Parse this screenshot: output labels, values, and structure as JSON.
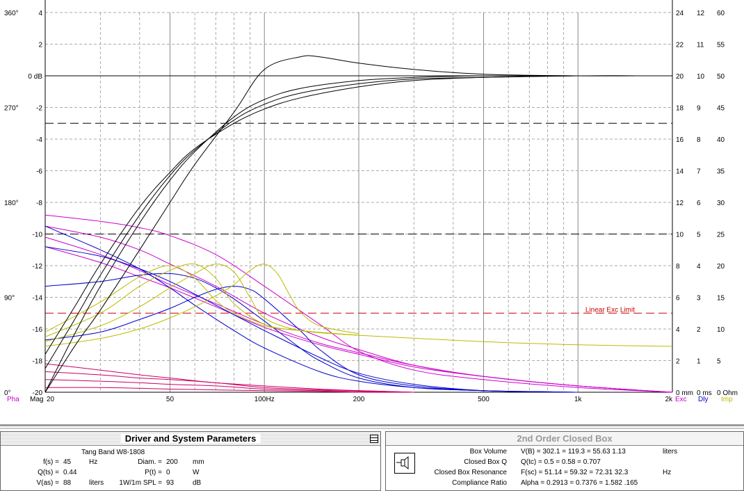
{
  "chart_data": {
    "type": "line",
    "title": "",
    "x_axis": {
      "scale": "log",
      "range": [
        20,
        2000
      ],
      "tick_labels": [
        "20",
        "50",
        "100Hz",
        "200",
        "500",
        "1k",
        "2k"
      ],
      "tick_values": [
        20,
        50,
        100,
        200,
        500,
        1000,
        2000
      ]
    },
    "y_left_magnitude": {
      "range": [
        -20,
        4
      ],
      "tick_values": [
        4,
        2,
        0,
        -2,
        -4,
        -6,
        -8,
        -10,
        -12,
        -14,
        -16,
        -18,
        -20
      ],
      "tick_labels": [
        "4",
        "2",
        "0 dB",
        "-2",
        "-4",
        "-6",
        "-8",
        "-10",
        "-12",
        "-14",
        "-16",
        "-18",
        "-20"
      ]
    },
    "y_left_phase": {
      "ticks": [
        {
          "label": "360°",
          "value": 360
        },
        {
          "label": "270°",
          "value": 270
        },
        {
          "label": "180°",
          "value": 180
        },
        {
          "label": "90°",
          "value": 90
        },
        {
          "label": "0°",
          "value": 0
        }
      ]
    },
    "y_right_axes": [
      {
        "name": "Exc",
        "unit": "0 mm",
        "labels": [
          "24",
          "22",
          "20",
          "18",
          "16",
          "14",
          "12",
          "10",
          "8",
          "6",
          "4",
          "2",
          "0 mm"
        ]
      },
      {
        "name": "Dly",
        "unit": "0 ms",
        "labels": [
          "12",
          "11",
          "10",
          "9",
          "8",
          "7",
          "6",
          "5",
          "4",
          "3",
          "2",
          "1",
          "0 ms"
        ]
      },
      {
        "name": "Imp",
        "unit": "0 Ohm",
        "labels": [
          "60",
          "55",
          "50",
          "45",
          "40",
          "35",
          "30",
          "25",
          "20",
          "15",
          "10",
          "5",
          "0 Ohm"
        ]
      }
    ],
    "bottom_left_labels": [
      "Pha",
      "Mag"
    ],
    "bottom_right_labels": [
      "Exc",
      "Dly",
      "Imp"
    ],
    "annotations": [
      {
        "text": "Linear Exc Limit",
        "color": "#cc0000"
      }
    ],
    "reference_lines": [
      {
        "y": -3,
        "style": "dashed",
        "color": "#000000"
      },
      {
        "y": -10,
        "style": "dashed",
        "color": "#000000"
      },
      {
        "y": -15,
        "style": "dashed",
        "color": "#cc0000"
      }
    ],
    "series": [
      {
        "group": "magnitude",
        "color": "#000000",
        "x": [
          20,
          25,
          30,
          40,
          50,
          60,
          80,
          100,
          130,
          150,
          200,
          300,
          500,
          1000,
          1700
        ],
        "y": [
          -20,
          -17,
          -14.8,
          -11,
          -8,
          -5.6,
          -2.3,
          0.4,
          1.2,
          1.2,
          0.8,
          0.4,
          0.1,
          0,
          0
        ]
      },
      {
        "group": "magnitude",
        "color": "#000000",
        "x": [
          20,
          25,
          30,
          40,
          50,
          60,
          80,
          100,
          130,
          200,
          300,
          500,
          1000,
          1700
        ],
        "y": [
          -20,
          -16.2,
          -13.3,
          -9.3,
          -6.6,
          -4.8,
          -2.6,
          -1.5,
          -0.8,
          -0.3,
          -0.1,
          0,
          0,
          0
        ]
      },
      {
        "group": "magnitude",
        "color": "#000000",
        "x": [
          20,
          25,
          30,
          40,
          50,
          60,
          80,
          100,
          130,
          200,
          300,
          500,
          1000,
          1700
        ],
        "y": [
          -18.5,
          -15.3,
          -12.6,
          -8.8,
          -6.3,
          -4.7,
          -2.8,
          -1.8,
          -1.1,
          -0.5,
          -0.2,
          -0.1,
          0,
          0
        ]
      },
      {
        "group": "magnitude",
        "color": "#000000",
        "x": [
          20,
          25,
          30,
          40,
          50,
          60,
          80,
          100,
          130,
          200,
          300,
          500,
          1000,
          1700
        ],
        "y": [
          -17.6,
          -14.5,
          -11.9,
          -8.3,
          -6.1,
          -4.6,
          -3.0,
          -2.1,
          -1.4,
          -0.7,
          -0.3,
          -0.1,
          0,
          0
        ]
      },
      {
        "group": "phase",
        "color": "#cc00cc",
        "x": [
          20,
          30,
          40,
          50,
          70,
          100,
          150,
          200,
          300,
          500,
          1000,
          2000
        ],
        "y": [
          -8.8,
          -9.2,
          -9.6,
          -10.1,
          -11.3,
          -13.3,
          -15.7,
          -17.4,
          -18.6,
          -19.2,
          -19.7,
          -20
        ]
      },
      {
        "group": "phase",
        "color": "#cc00cc",
        "x": [
          20,
          30,
          40,
          50,
          70,
          100,
          150,
          200,
          300,
          500,
          1000,
          2000
        ],
        "y": [
          -9.5,
          -10.2,
          -11,
          -11.9,
          -13.3,
          -15,
          -16.5,
          -17.3,
          -18.3,
          -19,
          -19.6,
          -20
        ]
      },
      {
        "group": "phase",
        "color": "#cc00cc",
        "x": [
          20,
          30,
          40,
          50,
          70,
          100,
          150,
          200,
          300,
          500,
          1000,
          2000
        ],
        "y": [
          -10.2,
          -11.3,
          -12.3,
          -13.2,
          -14.4,
          -15.7,
          -16.9,
          -17.5,
          -18.3,
          -19,
          -19.6,
          -20
        ]
      },
      {
        "group": "phase",
        "color": "#cc00cc",
        "x": [
          20,
          30,
          40,
          50,
          70,
          100,
          150,
          200,
          300,
          500,
          1000,
          2000
        ],
        "y": [
          -10.8,
          -11.8,
          -12.7,
          -13.4,
          -14.6,
          -15.9,
          -17,
          -17.6,
          -18.4,
          -19,
          -19.6,
          -20
        ]
      },
      {
        "group": "delay",
        "color": "#0000cc",
        "x": [
          20,
          30,
          40,
          50,
          60,
          80,
          100,
          150,
          200,
          300,
          500,
          1000
        ],
        "y": [
          -9.5,
          -11,
          -12.2,
          -13.4,
          -14.5,
          -16.1,
          -17.2,
          -18.7,
          -19.3,
          -19.7,
          -19.9,
          -20
        ]
      },
      {
        "group": "delay",
        "color": "#0000cc",
        "x": [
          20,
          30,
          40,
          50,
          60,
          80,
          100,
          150,
          200,
          300,
          500,
          1000
        ],
        "y": [
          -10.8,
          -11.4,
          -12.2,
          -13,
          -13.8,
          -15.1,
          -16.1,
          -17.8,
          -18.8,
          -19.5,
          -19.9,
          -20
        ]
      },
      {
        "group": "delay",
        "color": "#0000cc",
        "x": [
          20,
          30,
          40,
          50,
          60,
          70,
          80,
          100,
          130,
          150,
          200,
          300,
          500,
          1000
        ],
        "y": [
          -13.3,
          -13,
          -12.6,
          -12.5,
          -12.8,
          -13.4,
          -14.1,
          -15.5,
          -17.2,
          -18,
          -19.1,
          -19.7,
          -19.9,
          -20
        ]
      },
      {
        "group": "delay",
        "color": "#0000cc",
        "x": [
          20,
          30,
          40,
          50,
          60,
          70,
          80,
          90,
          100,
          130,
          150,
          200,
          300,
          500,
          1000
        ],
        "y": [
          -16.7,
          -16.2,
          -15.4,
          -14.7,
          -14,
          -13.5,
          -13.3,
          -13.5,
          -14.1,
          -16.1,
          -17.3,
          -18.9,
          -19.6,
          -19.9,
          -20
        ]
      },
      {
        "group": "impedance",
        "color": "#bbbb00",
        "x": [
          20,
          30,
          40,
          50,
          60,
          70,
          80,
          100,
          130,
          200,
          500,
          1000,
          2000
        ],
        "y": [
          -16.2,
          -14.3,
          -12.7,
          -12,
          -12.8,
          -14.2,
          -15,
          -15.8,
          -16.1,
          -16.4,
          -16.8,
          -17,
          -17.1
        ]
      },
      {
        "group": "impedance",
        "color": "#bbbb00",
        "x": [
          20,
          30,
          40,
          50,
          60,
          70,
          80,
          100,
          130,
          200
        ],
        "y": [
          -16.5,
          -15,
          -13.3,
          -12.3,
          -11.9,
          -12.8,
          -14.4,
          -15.7,
          -16.1,
          -16.4
        ]
      },
      {
        "group": "impedance",
        "color": "#bbbb00",
        "x": [
          20,
          30,
          40,
          50,
          60,
          70,
          80,
          90,
          100,
          130,
          200
        ],
        "y": [
          -16.8,
          -15.8,
          -14.6,
          -13.4,
          -12.5,
          -11.9,
          -12.4,
          -14,
          -15.3,
          -16.1,
          -16.4
        ]
      },
      {
        "group": "impedance",
        "color": "#bbbb00",
        "x": [
          20,
          30,
          40,
          50,
          60,
          70,
          80,
          90,
          100,
          110,
          120,
          130,
          150,
          200
        ],
        "y": [
          -17.1,
          -16.6,
          -16,
          -15.3,
          -14.6,
          -13.9,
          -13.2,
          -12.3,
          -11.9,
          -12.5,
          -13.8,
          -14.9,
          -15.8,
          -16.3
        ]
      },
      {
        "group": "excursion",
        "color": "#cc0066",
        "x": [
          20,
          30,
          40,
          50,
          70,
          100,
          150,
          200,
          300
        ],
        "y": [
          -18.2,
          -18.6,
          -18.9,
          -19.1,
          -19.4,
          -19.6,
          -19.8,
          -19.9,
          -20
        ]
      },
      {
        "group": "excursion",
        "color": "#cc0066",
        "x": [
          20,
          30,
          40,
          50,
          70,
          100,
          150,
          200,
          300
        ],
        "y": [
          -18.7,
          -18.9,
          -19.1,
          -19.2,
          -19.4,
          -19.7,
          -19.85,
          -19.9,
          -20
        ]
      },
      {
        "group": "excursion",
        "color": "#cc0066",
        "x": [
          20,
          30,
          40,
          50,
          70,
          100,
          150,
          200,
          300
        ],
        "y": [
          -19.2,
          -19.3,
          -19.4,
          -19.5,
          -19.6,
          -19.8,
          -19.9,
          -19.95,
          -20
        ]
      },
      {
        "group": "excursion",
        "color": "#cc0066",
        "x": [
          20,
          30,
          40,
          50,
          70,
          100,
          150,
          200,
          300
        ],
        "y": [
          -19.7,
          -19.7,
          -19.75,
          -19.8,
          -19.85,
          -19.9,
          -19.95,
          -20,
          -20
        ]
      }
    ]
  },
  "driver_panel": {
    "title": "Driver and System Parameters",
    "driver_name": "Tang Band  W8-1808",
    "params": [
      {
        "label": "f(s) =",
        "value": "45",
        "unit": "Hz"
      },
      {
        "label": "Q(ts) =",
        "value": "0.44",
        "unit": ""
      },
      {
        "label": "V(as) =",
        "value": "88",
        "unit": "liters"
      }
    ],
    "params2": [
      {
        "label": "Diam. =",
        "value": "200",
        "unit": "mm"
      },
      {
        "label": "P(t) =",
        "value": "0",
        "unit": "W"
      },
      {
        "label": "1W/1m SPL =",
        "value": "93",
        "unit": "dB"
      }
    ]
  },
  "box_panel": {
    "title": "2nd Order Closed Box",
    "rows": [
      {
        "label": "Box Volume",
        "values": "V(B) = 302.1    = 119.3     = 55.63 1.13",
        "unit": "liters"
      },
      {
        "label": "Closed Box Q",
        "values": "Q(tc) = 0.5      = 0.58      = 0.707",
        "unit": ""
      },
      {
        "label": "Closed Box Resonance",
        "values": "F(sc) = 51.14    = 59.32     = 72.31 32.3",
        "unit": "Hz"
      },
      {
        "label": "Compliance Ratio",
        "values": "Alpha = 0.2913 = 0.7376 = 1.582 .165",
        "unit": ""
      }
    ]
  }
}
